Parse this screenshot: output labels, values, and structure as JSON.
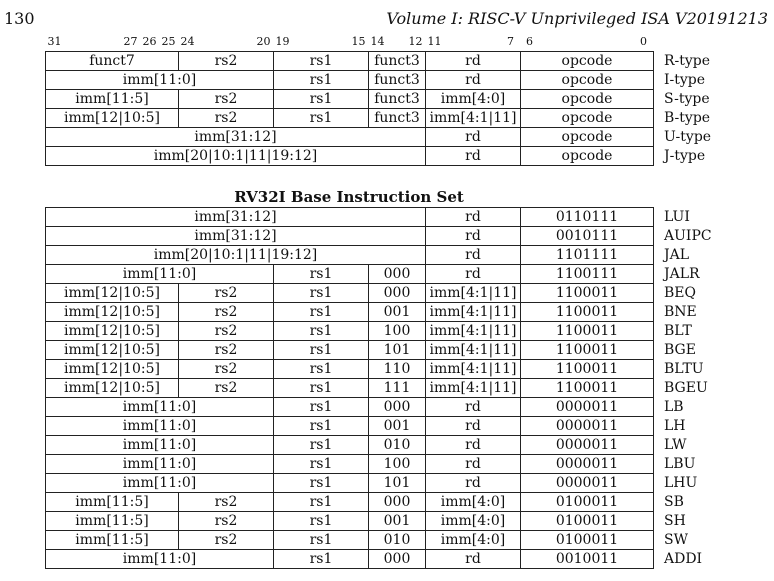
{
  "header": {
    "page_number": "130",
    "running_head": "Volume I: RISC-V Unprivileged ISA V20191213"
  },
  "bit_labels": [
    "31",
    "27",
    "26",
    "25",
    "24",
    "20",
    "19",
    "15",
    "14",
    "12",
    "11",
    "7",
    "6",
    "0"
  ],
  "formats": [
    {
      "type": "R-type",
      "cells": [
        {
          "text": "funct7",
          "span": 7,
          "align": "center"
        },
        {
          "text": "rs2",
          "span": 5,
          "align": "center"
        },
        {
          "text": "rs1",
          "span": 5,
          "align": "center"
        },
        {
          "text": "funct3",
          "span": 3,
          "align": "center"
        },
        {
          "text": "rd",
          "span": 5,
          "align": "center"
        },
        {
          "text": "opcode",
          "span": 7,
          "align": "center"
        }
      ]
    },
    {
      "type": "I-type",
      "cells": [
        {
          "text": "imm[11:0]",
          "span": 12,
          "align": "center"
        },
        {
          "text": "rs1",
          "span": 5,
          "align": "center"
        },
        {
          "text": "funct3",
          "span": 3,
          "align": "center"
        },
        {
          "text": "rd",
          "span": 5,
          "align": "center"
        },
        {
          "text": "opcode",
          "span": 7,
          "align": "center"
        }
      ]
    },
    {
      "type": "S-type",
      "cells": [
        {
          "text": "imm[11:5]",
          "span": 7,
          "align": "center"
        },
        {
          "text": "rs2",
          "span": 5,
          "align": "center"
        },
        {
          "text": "rs1",
          "span": 5,
          "align": "center"
        },
        {
          "text": "funct3",
          "span": 3,
          "align": "center"
        },
        {
          "text": "imm[4:0]",
          "span": 5,
          "align": "center"
        },
        {
          "text": "opcode",
          "span": 7,
          "align": "center"
        }
      ]
    },
    {
      "type": "B-type",
      "cells": [
        {
          "text": "imm[12|10:5]",
          "span": 7,
          "align": "center"
        },
        {
          "text": "rs2",
          "span": 5,
          "align": "center"
        },
        {
          "text": "rs1",
          "span": 5,
          "align": "center"
        },
        {
          "text": "funct3",
          "span": 3,
          "align": "center"
        },
        {
          "text": "imm[4:1|11]",
          "span": 5,
          "align": "center"
        },
        {
          "text": "opcode",
          "span": 7,
          "align": "center"
        }
      ]
    },
    {
      "type": "U-type",
      "cells": [
        {
          "text": "imm[31:12]",
          "span": 20,
          "align": "center"
        },
        {
          "text": "rd",
          "span": 5,
          "align": "center"
        },
        {
          "text": "opcode",
          "span": 7,
          "align": "center"
        }
      ]
    },
    {
      "type": "J-type",
      "cells": [
        {
          "text": "imm[20|10:1|11|19:12]",
          "span": 20,
          "align": "center"
        },
        {
          "text": "rd",
          "span": 5,
          "align": "center"
        },
        {
          "text": "opcode",
          "span": 7,
          "align": "center"
        }
      ]
    }
  ],
  "section_title": "RV32I Base Instruction Set",
  "instructions": [
    {
      "name": "LUI",
      "cells": [
        {
          "text": "imm[31:12]",
          "span": 20
        },
        {
          "text": "rd",
          "span": 5
        },
        {
          "text": "0110111",
          "span": 7
        }
      ]
    },
    {
      "name": "AUIPC",
      "cells": [
        {
          "text": "imm[31:12]",
          "span": 20
        },
        {
          "text": "rd",
          "span": 5
        },
        {
          "text": "0010111",
          "span": 7
        }
      ]
    },
    {
      "name": "JAL",
      "cells": [
        {
          "text": "imm[20|10:1|11|19:12]",
          "span": 20
        },
        {
          "text": "rd",
          "span": 5
        },
        {
          "text": "1101111",
          "span": 7
        }
      ]
    },
    {
      "name": "JALR",
      "cells": [
        {
          "text": "imm[11:0]",
          "span": 12
        },
        {
          "text": "rs1",
          "span": 5
        },
        {
          "text": "000",
          "span": 3
        },
        {
          "text": "rd",
          "span": 5
        },
        {
          "text": "1100111",
          "span": 7
        }
      ]
    },
    {
      "name": "BEQ",
      "cells": [
        {
          "text": "imm[12|10:5]",
          "span": 7
        },
        {
          "text": "rs2",
          "span": 5
        },
        {
          "text": "rs1",
          "span": 5
        },
        {
          "text": "000",
          "span": 3
        },
        {
          "text": "imm[4:1|11]",
          "span": 5
        },
        {
          "text": "1100011",
          "span": 7
        }
      ]
    },
    {
      "name": "BNE",
      "cells": [
        {
          "text": "imm[12|10:5]",
          "span": 7
        },
        {
          "text": "rs2",
          "span": 5
        },
        {
          "text": "rs1",
          "span": 5
        },
        {
          "text": "001",
          "span": 3
        },
        {
          "text": "imm[4:1|11]",
          "span": 5
        },
        {
          "text": "1100011",
          "span": 7
        }
      ]
    },
    {
      "name": "BLT",
      "cells": [
        {
          "text": "imm[12|10:5]",
          "span": 7
        },
        {
          "text": "rs2",
          "span": 5
        },
        {
          "text": "rs1",
          "span": 5
        },
        {
          "text": "100",
          "span": 3
        },
        {
          "text": "imm[4:1|11]",
          "span": 5
        },
        {
          "text": "1100011",
          "span": 7
        }
      ]
    },
    {
      "name": "BGE",
      "cells": [
        {
          "text": "imm[12|10:5]",
          "span": 7
        },
        {
          "text": "rs2",
          "span": 5
        },
        {
          "text": "rs1",
          "span": 5
        },
        {
          "text": "101",
          "span": 3
        },
        {
          "text": "imm[4:1|11]",
          "span": 5
        },
        {
          "text": "1100011",
          "span": 7
        }
      ]
    },
    {
      "name": "BLTU",
      "cells": [
        {
          "text": "imm[12|10:5]",
          "span": 7
        },
        {
          "text": "rs2",
          "span": 5
        },
        {
          "text": "rs1",
          "span": 5
        },
        {
          "text": "110",
          "span": 3
        },
        {
          "text": "imm[4:1|11]",
          "span": 5
        },
        {
          "text": "1100011",
          "span": 7
        }
      ]
    },
    {
      "name": "BGEU",
      "cells": [
        {
          "text": "imm[12|10:5]",
          "span": 7
        },
        {
          "text": "rs2",
          "span": 5
        },
        {
          "text": "rs1",
          "span": 5
        },
        {
          "text": "111",
          "span": 3
        },
        {
          "text": "imm[4:1|11]",
          "span": 5
        },
        {
          "text": "1100011",
          "span": 7
        }
      ]
    },
    {
      "name": "LB",
      "cells": [
        {
          "text": "imm[11:0]",
          "span": 12
        },
        {
          "text": "rs1",
          "span": 5
        },
        {
          "text": "000",
          "span": 3
        },
        {
          "text": "rd",
          "span": 5
        },
        {
          "text": "0000011",
          "span": 7
        }
      ]
    },
    {
      "name": "LH",
      "cells": [
        {
          "text": "imm[11:0]",
          "span": 12
        },
        {
          "text": "rs1",
          "span": 5
        },
        {
          "text": "001",
          "span": 3
        },
        {
          "text": "rd",
          "span": 5
        },
        {
          "text": "0000011",
          "span": 7
        }
      ]
    },
    {
      "name": "LW",
      "cells": [
        {
          "text": "imm[11:0]",
          "span": 12
        },
        {
          "text": "rs1",
          "span": 5
        },
        {
          "text": "010",
          "span": 3
        },
        {
          "text": "rd",
          "span": 5
        },
        {
          "text": "0000011",
          "span": 7
        }
      ]
    },
    {
      "name": "LBU",
      "cells": [
        {
          "text": "imm[11:0]",
          "span": 12
        },
        {
          "text": "rs1",
          "span": 5
        },
        {
          "text": "100",
          "span": 3
        },
        {
          "text": "rd",
          "span": 5
        },
        {
          "text": "0000011",
          "span": 7
        }
      ]
    },
    {
      "name": "LHU",
      "cells": [
        {
          "text": "imm[11:0]",
          "span": 12
        },
        {
          "text": "rs1",
          "span": 5
        },
        {
          "text": "101",
          "span": 3
        },
        {
          "text": "rd",
          "span": 5
        },
        {
          "text": "0000011",
          "span": 7
        }
      ]
    },
    {
      "name": "SB",
      "cells": [
        {
          "text": "imm[11:5]",
          "span": 7
        },
        {
          "text": "rs2",
          "span": 5
        },
        {
          "text": "rs1",
          "span": 5
        },
        {
          "text": "000",
          "span": 3
        },
        {
          "text": "imm[4:0]",
          "span": 5
        },
        {
          "text": "0100011",
          "span": 7
        }
      ]
    },
    {
      "name": "SH",
      "cells": [
        {
          "text": "imm[11:5]",
          "span": 7
        },
        {
          "text": "rs2",
          "span": 5
        },
        {
          "text": "rs1",
          "span": 5
        },
        {
          "text": "001",
          "span": 3
        },
        {
          "text": "imm[4:0]",
          "span": 5
        },
        {
          "text": "0100011",
          "span": 7
        }
      ]
    },
    {
      "name": "SW",
      "cells": [
        {
          "text": "imm[11:5]",
          "span": 7
        },
        {
          "text": "rs2",
          "span": 5
        },
        {
          "text": "rs1",
          "span": 5
        },
        {
          "text": "010",
          "span": 3
        },
        {
          "text": "imm[4:0]",
          "span": 5
        },
        {
          "text": "0100011",
          "span": 7
        }
      ]
    },
    {
      "name": "ADDI",
      "cells": [
        {
          "text": "imm[11:0]",
          "span": 12
        },
        {
          "text": "rs1",
          "span": 5
        },
        {
          "text": "000",
          "span": 3
        },
        {
          "text": "rd",
          "span": 5
        },
        {
          "text": "0010011",
          "span": 7
        }
      ]
    }
  ]
}
